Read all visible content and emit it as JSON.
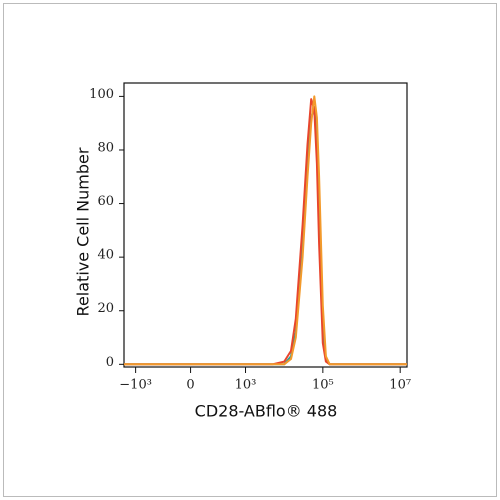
{
  "chart_data": {
    "type": "line",
    "x_label": "CD28-ABflo® 488",
    "y_label": "Relative Cell Number",
    "xscale": "asinh",
    "x": [
      -2000,
      -1000,
      0,
      1000,
      5000,
      10000,
      15000,
      20000,
      30000,
      40000,
      50000,
      60000,
      70000,
      80000,
      100000,
      120000,
      150000,
      1000000,
      15000000
    ],
    "series": [
      {
        "color": "#2a9d9a",
        "values": [
          0,
          0,
          0,
          0,
          0,
          0,
          3,
          12,
          45,
          75,
          92,
          96,
          85,
          60,
          15,
          2,
          0,
          0,
          0
        ]
      },
      {
        "color": "#e8452c",
        "values": [
          0,
          0,
          0,
          0,
          0,
          1,
          5,
          17,
          52,
          82,
          99,
          95,
          75,
          45,
          8,
          1,
          0,
          0,
          0
        ]
      },
      {
        "color": "#f39a2b",
        "values": [
          0,
          0,
          0,
          0,
          0,
          0,
          2,
          10,
          40,
          70,
          90,
          100,
          92,
          70,
          22,
          3,
          0,
          0,
          0
        ]
      }
    ],
    "xlim": [
      -2000,
      15000000
    ],
    "xticks": [
      {
        "value": -1000,
        "label": "−10³"
      },
      0,
      {
        "value": 1000,
        "label": "10³"
      },
      {
        "value": 100000,
        "label": "10⁵"
      },
      {
        "value": 10000000,
        "label": "10⁷"
      }
    ],
    "ylim": [
      -1,
      105
    ],
    "yticks": [
      0,
      20,
      40,
      60,
      80,
      100
    ]
  }
}
